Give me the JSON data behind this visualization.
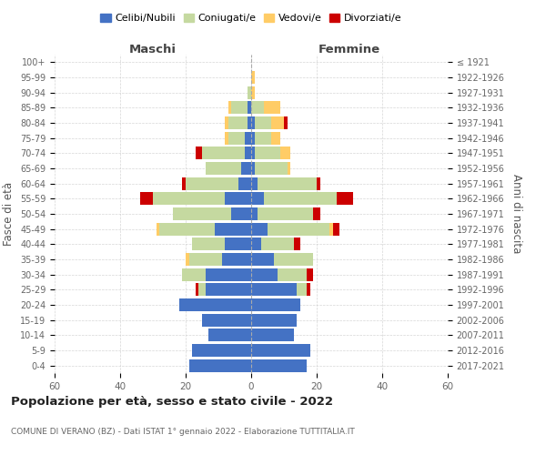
{
  "age_groups": [
    "0-4",
    "5-9",
    "10-14",
    "15-19",
    "20-24",
    "25-29",
    "30-34",
    "35-39",
    "40-44",
    "45-49",
    "50-54",
    "55-59",
    "60-64",
    "65-69",
    "70-74",
    "75-79",
    "80-84",
    "85-89",
    "90-94",
    "95-99",
    "100+"
  ],
  "birth_years": [
    "2017-2021",
    "2012-2016",
    "2007-2011",
    "2002-2006",
    "1997-2001",
    "1992-1996",
    "1987-1991",
    "1982-1986",
    "1977-1981",
    "1972-1976",
    "1967-1971",
    "1962-1966",
    "1957-1961",
    "1952-1956",
    "1947-1951",
    "1942-1946",
    "1937-1941",
    "1932-1936",
    "1927-1931",
    "1922-1926",
    "≤ 1921"
  ],
  "maschi": {
    "celibi": [
      19,
      18,
      13,
      15,
      22,
      14,
      14,
      9,
      8,
      11,
      6,
      8,
      4,
      3,
      2,
      2,
      1,
      1,
      0,
      0,
      0
    ],
    "coniugati": [
      0,
      0,
      0,
      0,
      0,
      2,
      7,
      10,
      10,
      17,
      18,
      22,
      16,
      11,
      13,
      5,
      6,
      5,
      1,
      0,
      0
    ],
    "vedovi": [
      0,
      0,
      0,
      0,
      0,
      0,
      0,
      1,
      0,
      1,
      0,
      0,
      0,
      0,
      0,
      1,
      1,
      1,
      0,
      0,
      0
    ],
    "divorziati": [
      0,
      0,
      0,
      0,
      0,
      1,
      0,
      0,
      0,
      0,
      0,
      4,
      1,
      0,
      2,
      0,
      0,
      0,
      0,
      0,
      0
    ]
  },
  "femmine": {
    "nubili": [
      17,
      18,
      13,
      14,
      15,
      14,
      8,
      7,
      3,
      5,
      2,
      4,
      2,
      1,
      1,
      1,
      1,
      0,
      0,
      0,
      0
    ],
    "coniugate": [
      0,
      0,
      0,
      0,
      0,
      3,
      9,
      12,
      10,
      19,
      17,
      22,
      18,
      10,
      8,
      5,
      5,
      4,
      0,
      0,
      0
    ],
    "vedove": [
      0,
      0,
      0,
      0,
      0,
      0,
      0,
      0,
      0,
      1,
      0,
      0,
      0,
      1,
      3,
      3,
      4,
      5,
      1,
      1,
      0
    ],
    "divorziate": [
      0,
      0,
      0,
      0,
      0,
      1,
      2,
      0,
      2,
      2,
      2,
      5,
      1,
      0,
      0,
      0,
      1,
      0,
      0,
      0,
      0
    ]
  },
  "colors": {
    "celibi": "#4472C4",
    "coniugati": "#C5D9A0",
    "vedovi": "#FFCC66",
    "divorziati": "#CC0000"
  },
  "title": "Popolazione per età, sesso e stato civile - 2022",
  "subtitle": "COMUNE DI VERANO (BZ) - Dati ISTAT 1° gennaio 2022 - Elaborazione TUTTITALIA.IT",
  "xlabel_left": "Maschi",
  "xlabel_right": "Femmine",
  "ylabel_left": "Fasce di età",
  "ylabel_right": "Anni di nascita",
  "xlim": 60,
  "legend_labels": [
    "Celibi/Nubili",
    "Coniugati/e",
    "Vedovi/e",
    "Divorziati/e"
  ],
  "background_color": "#FFFFFF",
  "grid_color": "#CCCCCC"
}
